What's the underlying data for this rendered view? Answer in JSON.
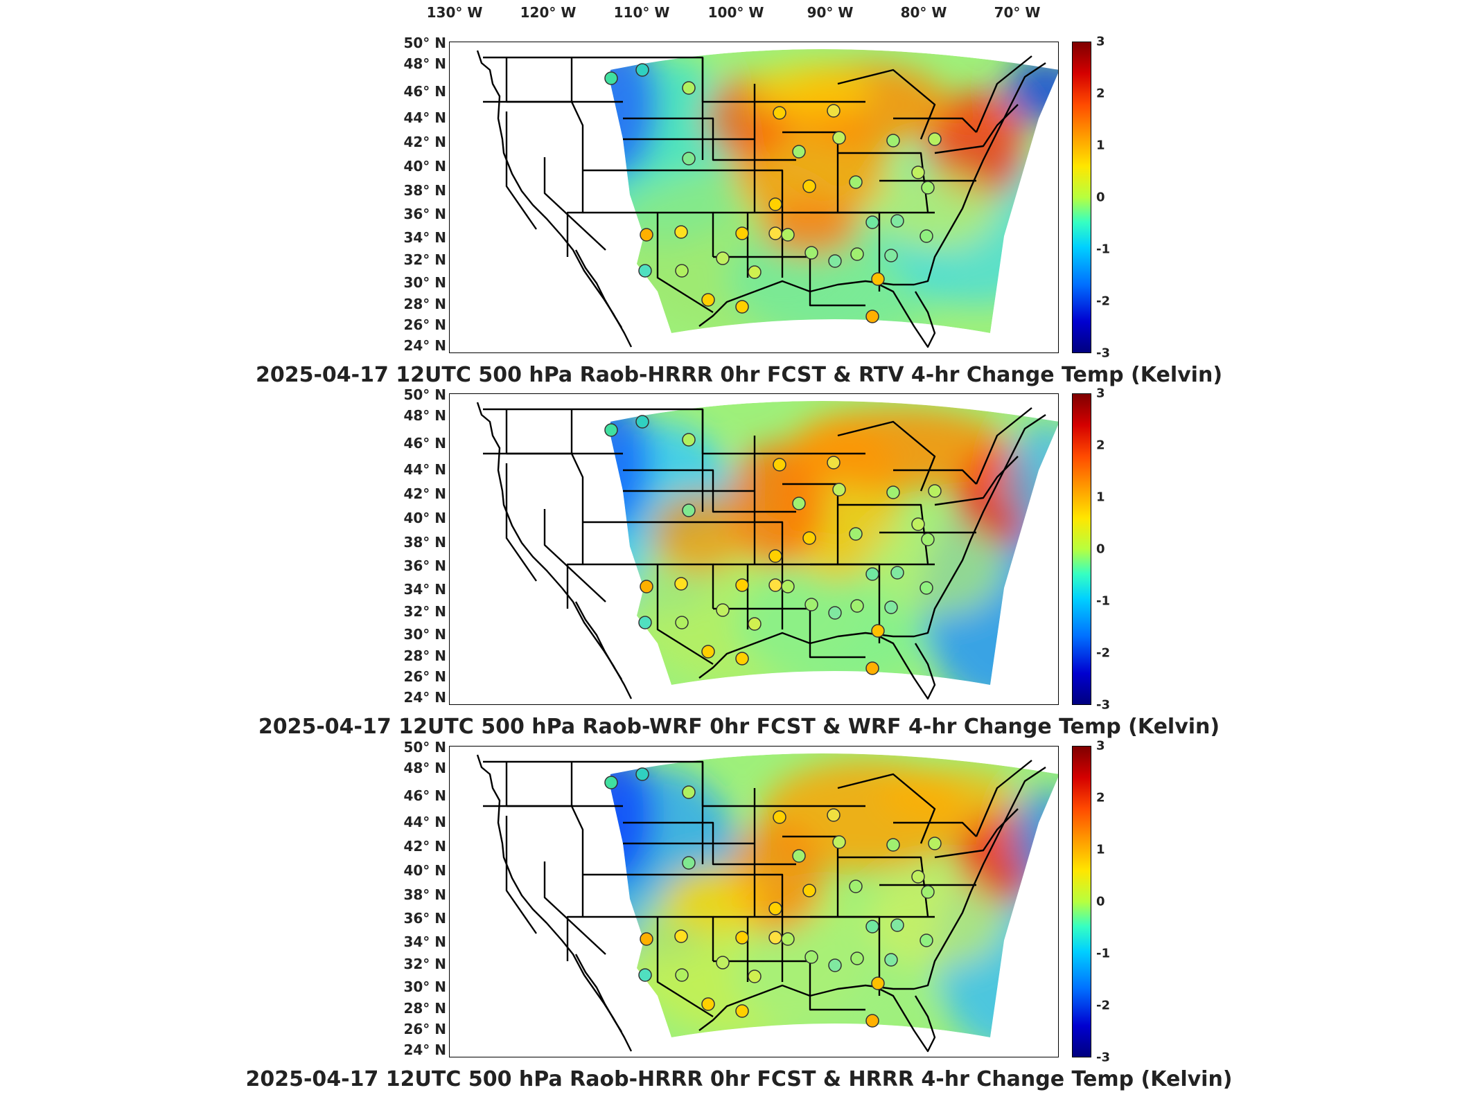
{
  "longitude_labels": [
    "130° W",
    "120° W",
    "110° W",
    "100° W",
    "90° W",
    "80° W",
    "70° W"
  ],
  "latitude_labels": [
    "50° N",
    "48° N",
    "46° N",
    "44° N",
    "42° N",
    "40° N",
    "38° N",
    "36° N",
    "34° N",
    "32° N",
    "30° N",
    "28° N",
    "26° N",
    "24° N"
  ],
  "colorbar": {
    "ticks": [
      "3",
      "2",
      "1",
      "0",
      "-1",
      "-2",
      "-3"
    ],
    "colors": [
      "#7f0000",
      "#d40000",
      "#ff4a00",
      "#ff9a00",
      "#ffe600",
      "#b7ff3f",
      "#36ffc2",
      "#00d0ff",
      "#0070ff",
      "#0000d0",
      "#00007f"
    ]
  },
  "panels": [
    {
      "title": "2025-04-17 12UTC 500 hPa Raob-HRRR 0hr FCST & RTV 4-hr Change Temp (Kelvin)"
    },
    {
      "title": "2025-04-17 12UTC 500 hPa Raob-WRF 0hr FCST & WRF 4-hr Change Temp (Kelvin)"
    },
    {
      "title": "2025-04-17 12UTC 500 hPa Raob-HRRR 0hr FCST & HRRR 4-hr Change Temp (Kelvin)"
    }
  ]
}
